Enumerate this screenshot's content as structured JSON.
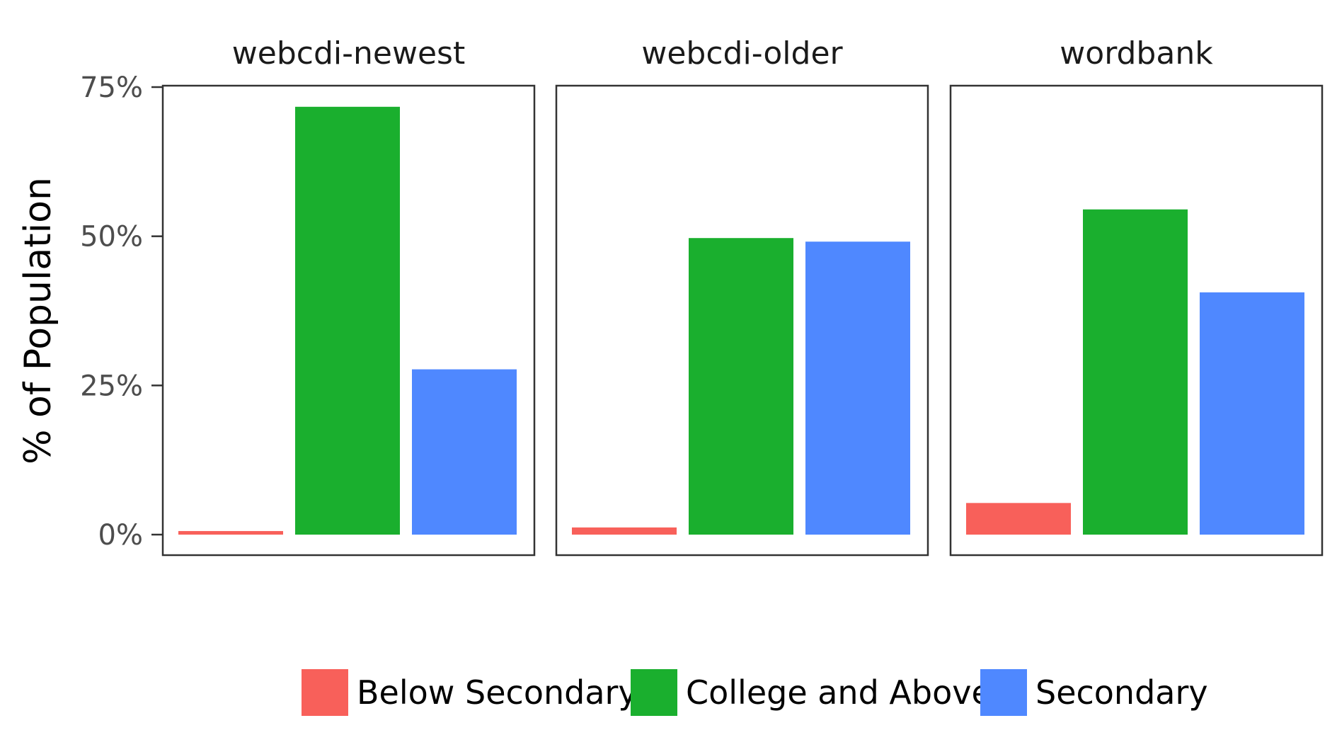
{
  "chart_data": {
    "type": "bar",
    "facets": [
      "webcdi-newest",
      "webcdi-older",
      "wordbank"
    ],
    "categories": [
      "Below Secondary",
      "College and Above",
      "Secondary"
    ],
    "series": [
      {
        "name": "Below Secondary",
        "values": [
          0.6,
          1.2,
          5.3
        ]
      },
      {
        "name": "College and Above",
        "values": [
          71.7,
          49.7,
          54.5
        ]
      },
      {
        "name": "Secondary",
        "values": [
          27.7,
          49.1,
          40.6
        ]
      }
    ],
    "ylabel": "% of Population",
    "ylim": [
      0,
      75
    ],
    "yticks": [
      0,
      25,
      50,
      75
    ],
    "ytick_labels": [
      "0%",
      "25%",
      "50%",
      "75%"
    ],
    "grid": false,
    "legend": {
      "position": "bottom",
      "items": [
        "Below Secondary",
        "College and Above",
        "Secondary"
      ]
    },
    "colors": {
      "Below Secondary": "#F8605A",
      "College and Above": "#1AAF2E",
      "Secondary": "#4F88FF"
    }
  }
}
